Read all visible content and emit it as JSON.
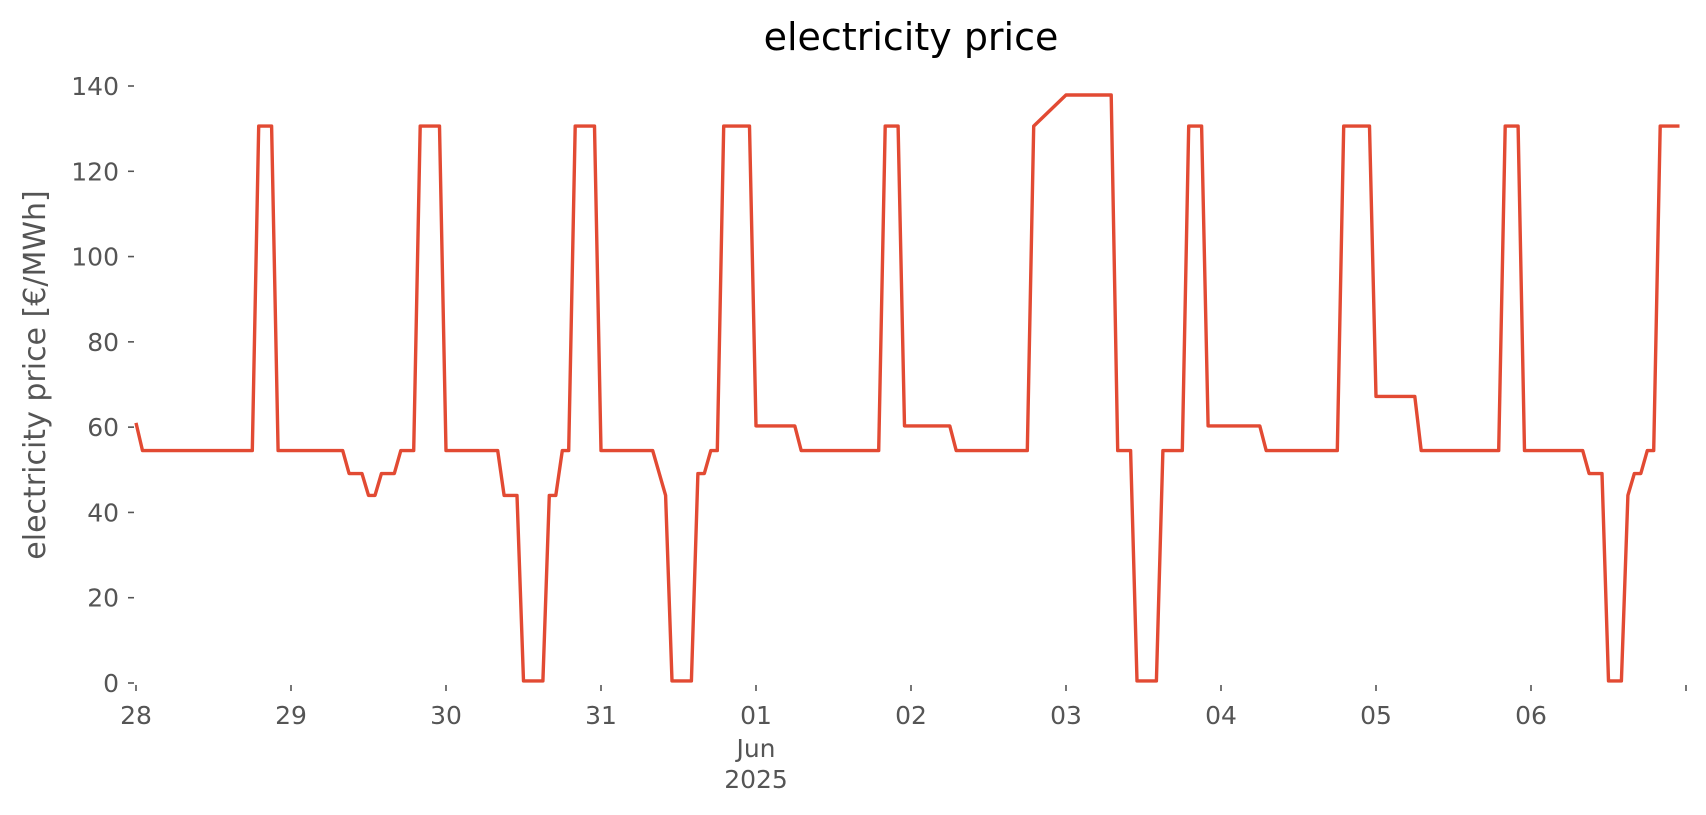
{
  "chart_data": {
    "type": "line",
    "title": "electricity price",
    "xlabel": "",
    "ylabel": "electricity price [€/MWh]",
    "ylim": [
      0,
      140
    ],
    "xlim": [
      "2025-05-28 00:00",
      "2025-06-06 23:00"
    ],
    "grid": false,
    "legend": "none",
    "line_color": "#E24A33",
    "yticks": [
      0,
      20,
      40,
      60,
      80,
      100,
      120,
      140
    ],
    "xticks": [
      {
        "x": "2025-05-28",
        "label": "28",
        "sublabels": []
      },
      {
        "x": "2025-05-29",
        "label": "29",
        "sublabels": []
      },
      {
        "x": "2025-05-30",
        "label": "30",
        "sublabels": []
      },
      {
        "x": "2025-05-31",
        "label": "31",
        "sublabels": []
      },
      {
        "x": "2025-06-01",
        "label": "01",
        "sublabels": [
          "Jun",
          "2025"
        ]
      },
      {
        "x": "2025-06-02",
        "label": "02",
        "sublabels": []
      },
      {
        "x": "2025-06-03",
        "label": "03",
        "sublabels": []
      },
      {
        "x": "2025-06-04",
        "label": "04",
        "sublabels": []
      },
      {
        "x": "2025-06-05",
        "label": "05",
        "sublabels": []
      },
      {
        "x": "2025-06-06",
        "label": "06",
        "sublabels": []
      },
      {
        "x": "2025-06-07",
        "label": "",
        "sublabels": []
      }
    ],
    "series": [
      {
        "points": [
          [
            "2025-05-28 00:00",
            61
          ],
          [
            "2025-05-28 01:00",
            54.5
          ],
          [
            "2025-05-28 18:00",
            54.5
          ],
          [
            "2025-05-28 19:00",
            130.6
          ],
          [
            "2025-05-28 21:00",
            130.6
          ],
          [
            "2025-05-28 22:00",
            54.5
          ],
          [
            "2025-05-29 08:00",
            54.5
          ],
          [
            "2025-05-29 09:00",
            49.1
          ],
          [
            "2025-05-29 11:00",
            49.1
          ],
          [
            "2025-05-29 12:00",
            44
          ],
          [
            "2025-05-29 13:00",
            44
          ],
          [
            "2025-05-29 14:00",
            49.1
          ],
          [
            "2025-05-29 16:00",
            49.1
          ],
          [
            "2025-05-29 17:00",
            54.5
          ],
          [
            "2025-05-29 19:00",
            54.5
          ],
          [
            "2025-05-29 20:00",
            130.6
          ],
          [
            "2025-05-29 23:00",
            130.6
          ],
          [
            "2025-05-30 00:00",
            54.5
          ],
          [
            "2025-05-30 08:00",
            54.5
          ],
          [
            "2025-05-30 09:00",
            44
          ],
          [
            "2025-05-30 11:00",
            44
          ],
          [
            "2025-05-30 12:00",
            0.5
          ],
          [
            "2025-05-30 15:00",
            0.5
          ],
          [
            "2025-05-30 16:00",
            44
          ],
          [
            "2025-05-30 17:00",
            44
          ],
          [
            "2025-05-30 18:00",
            54.5
          ],
          [
            "2025-05-30 19:00",
            54.5
          ],
          [
            "2025-05-30 20:00",
            130.6
          ],
          [
            "2025-05-30 23:00",
            130.6
          ],
          [
            "2025-05-31 00:00",
            54.5
          ],
          [
            "2025-05-31 08:00",
            54.5
          ],
          [
            "2025-05-31 10:00",
            44
          ],
          [
            "2025-05-31 11:00",
            0.5
          ],
          [
            "2025-05-31 14:00",
            0.5
          ],
          [
            "2025-05-31 15:00",
            49.1
          ],
          [
            "2025-05-31 16:00",
            49.1
          ],
          [
            "2025-05-31 17:00",
            54.5
          ],
          [
            "2025-05-31 18:00",
            54.5
          ],
          [
            "2025-05-31 19:00",
            130.6
          ],
          [
            "2025-05-31 23:00",
            130.6
          ],
          [
            "2025-06-01 00:00",
            60.3
          ],
          [
            "2025-06-01 06:00",
            60.3
          ],
          [
            "2025-06-01 07:00",
            54.5
          ],
          [
            "2025-06-01 19:00",
            54.5
          ],
          [
            "2025-06-01 20:00",
            130.6
          ],
          [
            "2025-06-01 22:00",
            130.6
          ],
          [
            "2025-06-01 23:00",
            60.3
          ],
          [
            "2025-06-02 06:00",
            60.3
          ],
          [
            "2025-06-02 07:00",
            54.5
          ],
          [
            "2025-06-02 18:00",
            54.5
          ],
          [
            "2025-06-02 19:00",
            130.6
          ],
          [
            "2025-06-03 00:00",
            137.9
          ],
          [
            "2025-06-03 07:00",
            137.9
          ],
          [
            "2025-06-03 08:00",
            54.5
          ],
          [
            "2025-06-03 10:00",
            54.5
          ],
          [
            "2025-06-03 11:00",
            0.5
          ],
          [
            "2025-06-03 14:00",
            0.5
          ],
          [
            "2025-06-03 15:00",
            54.5
          ],
          [
            "2025-06-03 18:00",
            54.5
          ],
          [
            "2025-06-03 19:00",
            130.6
          ],
          [
            "2025-06-03 21:00",
            130.6
          ],
          [
            "2025-06-03 22:00",
            60.3
          ],
          [
            "2025-06-04 06:00",
            60.3
          ],
          [
            "2025-06-04 07:00",
            54.5
          ],
          [
            "2025-06-04 18:00",
            54.5
          ],
          [
            "2025-06-04 19:00",
            130.6
          ],
          [
            "2025-06-04 23:00",
            130.6
          ],
          [
            "2025-06-05 00:00",
            67.2
          ],
          [
            "2025-06-05 06:00",
            67.2
          ],
          [
            "2025-06-05 07:00",
            54.5
          ],
          [
            "2025-06-05 19:00",
            54.5
          ],
          [
            "2025-06-05 20:00",
            130.6
          ],
          [
            "2025-06-05 22:00",
            130.6
          ],
          [
            "2025-06-05 23:00",
            54.5
          ],
          [
            "2025-06-06 08:00",
            54.5
          ],
          [
            "2025-06-06 09:00",
            49.1
          ],
          [
            "2025-06-06 11:00",
            49.1
          ],
          [
            "2025-06-06 12:00",
            0.5
          ],
          [
            "2025-06-06 14:00",
            0.5
          ],
          [
            "2025-06-06 15:00",
            44
          ],
          [
            "2025-06-06 16:00",
            49.1
          ],
          [
            "2025-06-06 17:00",
            49.1
          ],
          [
            "2025-06-06 18:00",
            54.5
          ],
          [
            "2025-06-06 19:00",
            54.5
          ],
          [
            "2025-06-06 20:00",
            130.6
          ],
          [
            "2025-06-06 23:00",
            130.6
          ]
        ]
      }
    ]
  }
}
